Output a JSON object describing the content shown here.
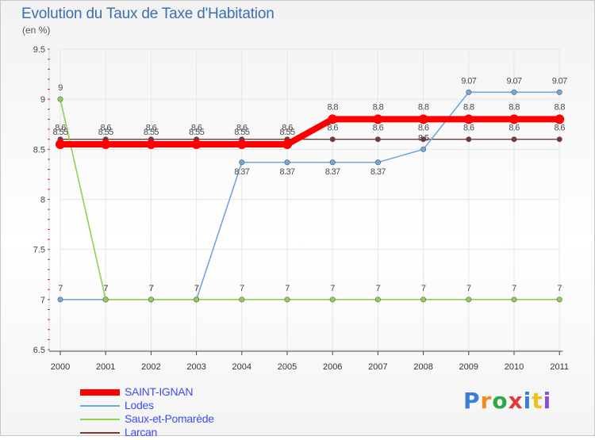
{
  "title": "Evolution du Taux de Taxe d'Habitation",
  "subtitle": "(en %)",
  "logo_text": "Proxiti",
  "chart_data": {
    "type": "line",
    "title": "Evolution du Taux de Taxe d'Habitation",
    "ylabel": "(en %)",
    "xlabel": "",
    "ylim": [
      6.5,
      9.5
    ],
    "yticks": [
      "6.5",
      "7",
      "7.5",
      "8",
      "8.5",
      "9",
      "9.5"
    ],
    "categories": [
      "2000",
      "2001",
      "2002",
      "2003",
      "2004",
      "2005",
      "2006",
      "2007",
      "2008",
      "2009",
      "2010",
      "2011"
    ],
    "series": [
      {
        "name": "SAINT-IGNAN",
        "color": "#ff0000",
        "values": [
          8.55,
          8.55,
          8.55,
          8.55,
          8.55,
          8.55,
          8.8,
          8.8,
          8.8,
          8.8,
          8.8,
          8.8
        ],
        "labels": [
          "8.55",
          "8.55",
          "8.55",
          "8.55",
          "8.55",
          "8.55",
          "8.8",
          "8.8",
          "8.8",
          "8.8",
          "8.8",
          "8.8"
        ]
      },
      {
        "name": "Lodes",
        "color": "#6fa8dc",
        "values": [
          7,
          7,
          7,
          7,
          8.37,
          8.37,
          8.37,
          8.37,
          8.5,
          9.07,
          9.07,
          9.07
        ],
        "labels": [
          "7",
          "7",
          "7",
          "7",
          "8.37",
          "8.37",
          "8.37",
          "8.37",
          "8.5",
          "9.07",
          "9.07",
          "9.07"
        ]
      },
      {
        "name": "Saux-et-Pomarède",
        "color": "#8fd14f",
        "values": [
          9,
          7,
          7,
          7,
          7,
          7,
          7,
          7,
          7,
          7,
          7,
          7
        ],
        "labels": [
          "9",
          "7",
          "7",
          "7",
          "7",
          "7",
          "7",
          "7",
          "7",
          "7",
          "7",
          "7"
        ]
      },
      {
        "name": "Larcan",
        "color": "#7b3535",
        "values": [
          8.6,
          8.6,
          8.6,
          8.6,
          8.6,
          8.6,
          8.6,
          8.6,
          8.6,
          8.6,
          8.6,
          8.6
        ],
        "labels": [
          "8.6",
          "8.6",
          "8.6",
          "8.6",
          "8.6",
          "8.6",
          "8.6",
          "8.6",
          "8.6",
          "8.6",
          "8.6",
          "8.6"
        ]
      }
    ]
  }
}
